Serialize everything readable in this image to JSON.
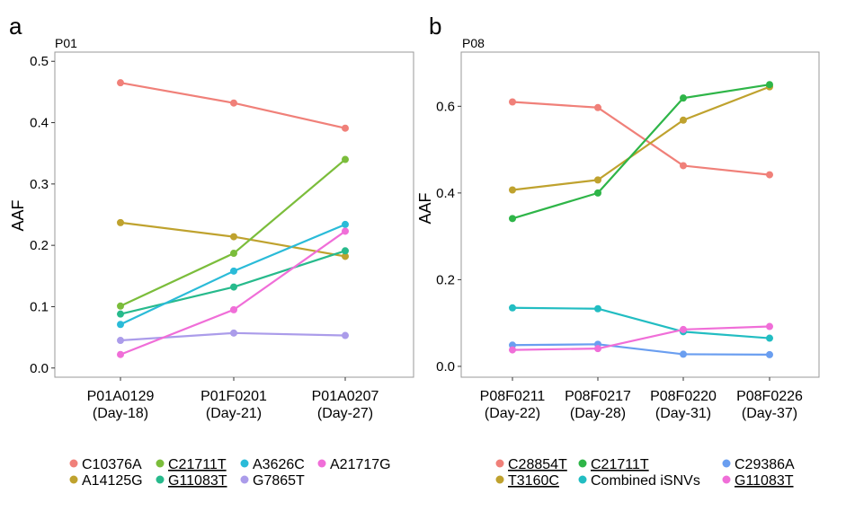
{
  "figure": {
    "panels": [
      {
        "letter": "a",
        "title": "P01"
      },
      {
        "letter": "b",
        "title": "P08"
      }
    ]
  },
  "chart_data": [
    {
      "type": "line",
      "panel_letter": "a",
      "title": "P01",
      "xlabel": "",
      "ylabel": "AAF",
      "categories": [
        "P01A0129\n(Day-18)",
        "P01F0201\n(Day-21)",
        "P01A0207\n(Day-27)"
      ],
      "ylim": [
        -0.015,
        0.515
      ],
      "yticks": [
        0.0,
        0.1,
        0.2,
        0.3,
        0.4,
        0.5
      ],
      "ytick_labels": [
        "0.0",
        "0.1",
        "0.2",
        "0.3",
        "0.4",
        "0.5"
      ],
      "grid": false,
      "legend_placement": "bottom",
      "series": [
        {
          "name": "C10376A",
          "underlined": false,
          "color": "#F08079",
          "values": [
            0.465,
            0.432,
            0.391
          ]
        },
        {
          "name": "A14125G",
          "underlined": false,
          "color": "#BFA22E",
          "values": [
            0.237,
            0.214,
            0.182
          ]
        },
        {
          "name": "C21711T",
          "underlined": true,
          "color": "#7BBD3B",
          "values": [
            0.101,
            0.187,
            0.34
          ]
        },
        {
          "name": "G11083T",
          "underlined": true,
          "color": "#27BA8C",
          "values": [
            0.088,
            0.132,
            0.191
          ]
        },
        {
          "name": "A3626C",
          "underlined": false,
          "color": "#2ABBD8",
          "values": [
            0.071,
            0.158,
            0.234
          ]
        },
        {
          "name": "G7865T",
          "underlined": false,
          "color": "#AB9CEA",
          "values": [
            0.045,
            0.057,
            0.053
          ]
        },
        {
          "name": "A21717G",
          "underlined": false,
          "color": "#F06ED8",
          "values": [
            0.022,
            0.095,
            0.223
          ]
        }
      ]
    },
    {
      "type": "line",
      "panel_letter": "b",
      "title": "P08",
      "xlabel": "",
      "ylabel": "AAF",
      "categories": [
        "P08F0211\n(Day-22)",
        "P08F0217\n(Day-28)",
        "P08F0220\n(Day-31)",
        "P08F0226\n(Day-37)"
      ],
      "ylim": [
        -0.025,
        0.725
      ],
      "yticks": [
        0.0,
        0.2,
        0.4,
        0.6
      ],
      "ytick_labels": [
        "0.0",
        "0.2",
        "0.4",
        "0.6"
      ],
      "grid": false,
      "legend_placement": "bottom",
      "series": [
        {
          "name": "C28854T",
          "underlined": true,
          "color": "#F08079",
          "values": [
            0.61,
            0.597,
            0.463,
            0.442
          ]
        },
        {
          "name": "T3160C",
          "underlined": true,
          "color": "#BFA22E",
          "values": [
            0.407,
            0.43,
            0.568,
            0.645
          ]
        },
        {
          "name": "C21711T",
          "underlined": true,
          "color": "#2EB548",
          "values": [
            0.341,
            0.4,
            0.619,
            0.65
          ]
        },
        {
          "name": "Combined iSNVs",
          "underlined": false,
          "color": "#22BDC2",
          "values": [
            0.135,
            0.133,
            0.08,
            0.065
          ]
        },
        {
          "name": "C29386A",
          "underlined": false,
          "color": "#6A9EF0",
          "values": [
            0.049,
            0.051,
            0.028,
            0.027
          ]
        },
        {
          "name": "G11083T",
          "underlined": true,
          "color": "#F06ED8",
          "values": [
            0.038,
            0.041,
            0.085,
            0.092
          ]
        }
      ]
    }
  ]
}
